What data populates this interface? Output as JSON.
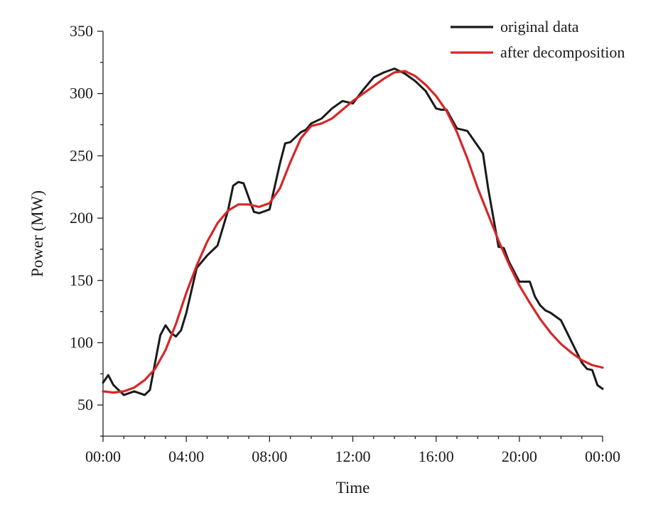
{
  "chart_data": {
    "type": "line",
    "title": "",
    "xlabel": "Time",
    "ylabel": "Power (MW)",
    "xlim": [
      0,
      24
    ],
    "ylim": [
      25,
      350
    ],
    "x_tick_labels": [
      "00:00",
      "04:00",
      "08:00",
      "12:00",
      "16:00",
      "20:00",
      "00:00"
    ],
    "x_tick_hours": [
      0,
      4,
      8,
      12,
      16,
      20,
      24
    ],
    "y_ticks": [
      50,
      100,
      150,
      200,
      250,
      300,
      350
    ],
    "legend_position": "top-right",
    "grid": false,
    "series": [
      {
        "name": "original data",
        "color": "#1a1a1a",
        "x": [
          0,
          0.25,
          0.5,
          1,
          1.5,
          2,
          2.25,
          2.75,
          3,
          3.25,
          3.5,
          3.75,
          4,
          4.5,
          5,
          5.5,
          6,
          6.25,
          6.5,
          6.75,
          7.25,
          7.5,
          8,
          8.5,
          8.75,
          9,
          9.5,
          9.75,
          10,
          10.5,
          11,
          11.5,
          12,
          12.5,
          13,
          13.5,
          14,
          14.25,
          14.5,
          15,
          15.5,
          16,
          16.25,
          16.5,
          17,
          17.5,
          18,
          18.25,
          18.5,
          19,
          19.25,
          19.5,
          20,
          20.5,
          20.75,
          21,
          21.25,
          21.5,
          22,
          22.5,
          23,
          23.25,
          23.5,
          23.75,
          24
        ],
        "y": [
          68,
          74,
          66,
          58,
          61,
          58,
          62,
          106,
          114,
          108,
          105,
          110,
          124,
          160,
          170,
          178,
          206,
          226,
          229,
          228,
          205,
          204,
          207,
          244,
          260,
          261,
          269,
          271,
          276,
          280,
          288,
          294,
          292,
          303,
          313,
          317,
          320,
          318,
          316,
          310,
          302,
          288,
          287,
          287,
          272,
          270,
          258,
          252,
          224,
          177,
          176,
          165,
          149,
          149,
          137,
          130,
          126,
          124,
          118,
          101,
          84,
          79,
          78,
          66,
          63
        ]
      },
      {
        "name": "after decomposition",
        "color": "#d62728",
        "x": [
          0,
          0.5,
          1,
          1.5,
          2,
          2.5,
          3,
          3.5,
          4,
          4.5,
          5,
          5.5,
          6,
          6.5,
          7,
          7.5,
          8,
          8.5,
          9,
          9.5,
          10,
          10.5,
          11,
          11.5,
          12,
          12.5,
          13,
          13.5,
          14,
          14.5,
          15,
          15.5,
          16,
          16.5,
          17,
          17.5,
          18,
          18.5,
          19,
          19.5,
          20,
          20.5,
          21,
          21.5,
          22,
          22.5,
          23,
          23.5,
          24
        ],
        "y": [
          61,
          60,
          61,
          64,
          70,
          79,
          94,
          115,
          140,
          162,
          181,
          196,
          206,
          211,
          211,
          209,
          212,
          224,
          245,
          264,
          274,
          276,
          280,
          287,
          294,
          300,
          306,
          312,
          317,
          318,
          314,
          307,
          298,
          286,
          269,
          248,
          224,
          203,
          182,
          163,
          146,
          132,
          119,
          108,
          99,
          92,
          86,
          82,
          80
        ]
      }
    ]
  }
}
